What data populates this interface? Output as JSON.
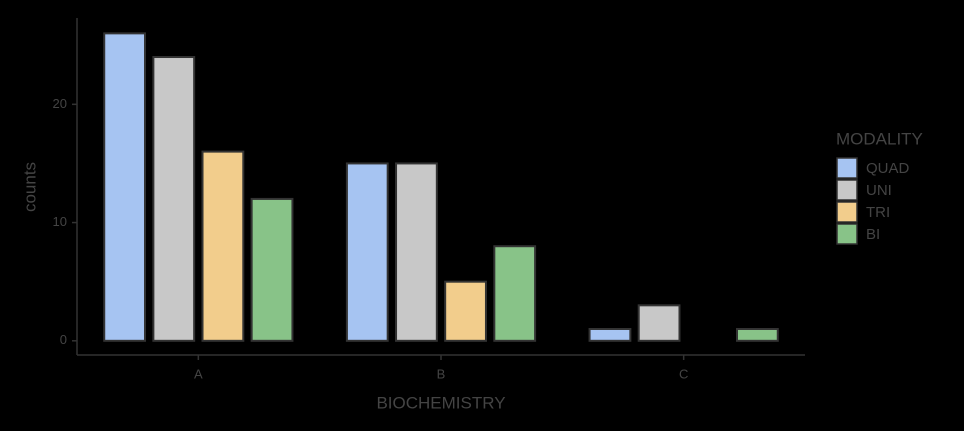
{
  "chart_data": {
    "type": "bar",
    "x_label": "BIOCHEMISTRY",
    "y_label": "counts",
    "categories": [
      "A",
      "B",
      "C"
    ],
    "series": [
      {
        "name": "QUAD",
        "color": "#a6c4f2",
        "values": [
          26,
          15,
          1
        ]
      },
      {
        "name": "UNI",
        "color": "#c8c8c8",
        "values": [
          24,
          15,
          3
        ]
      },
      {
        "name": "TRI",
        "color": "#f2cd8c",
        "values": [
          16,
          5,
          0
        ]
      },
      {
        "name": "BI",
        "color": "#88c388",
        "values": [
          12,
          8,
          1
        ]
      }
    ],
    "legend_title": "MODALITY",
    "legend": "right",
    "ylim": [
      -1.2,
      27.3
    ],
    "yticks": [
      0,
      10,
      20
    ]
  }
}
